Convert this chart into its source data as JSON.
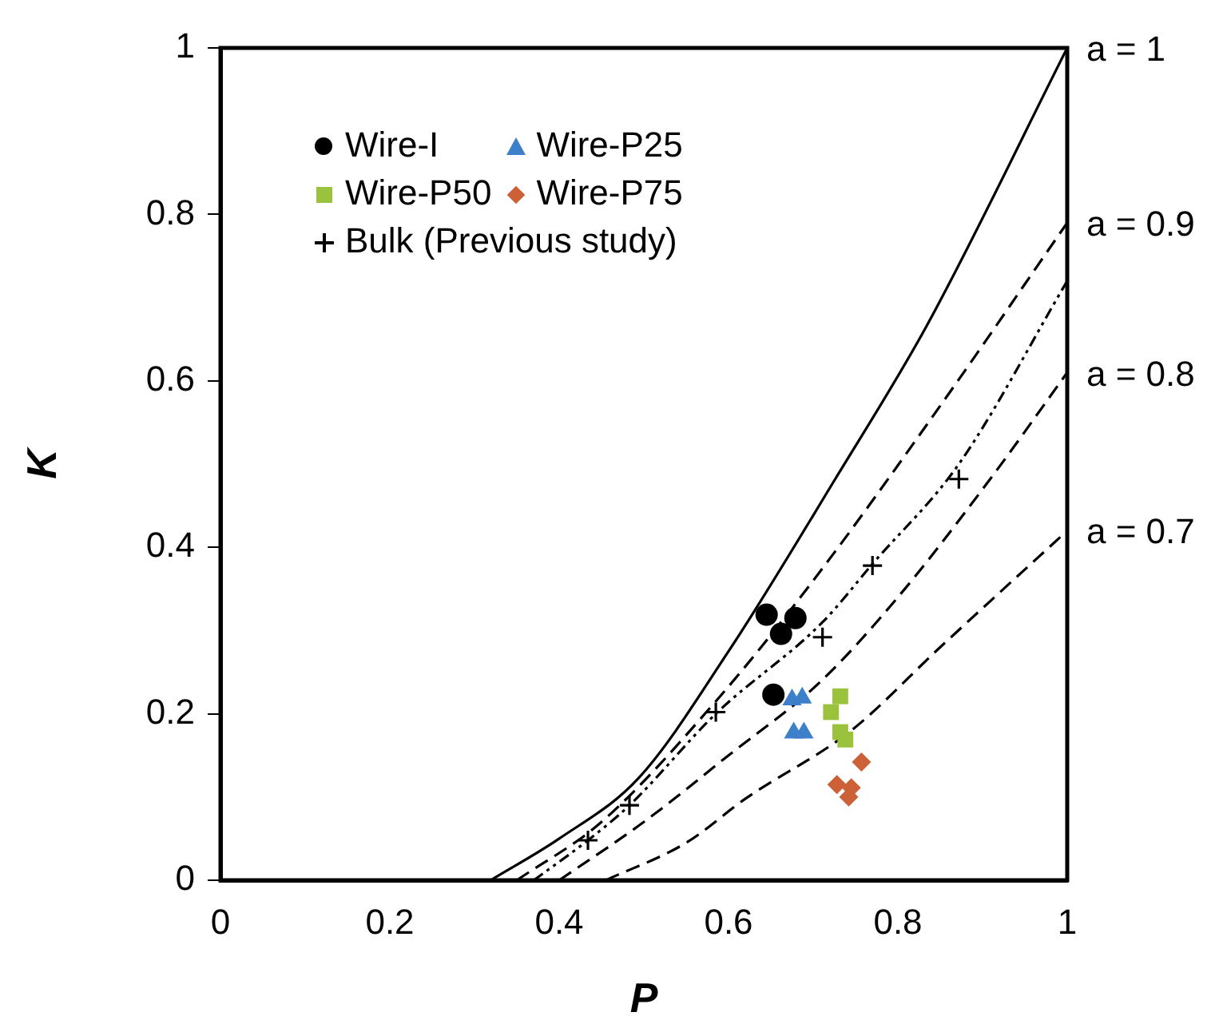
{
  "chart_data": {
    "type": "scatter",
    "xlabel": "P",
    "ylabel": "K",
    "xlim": [
      0,
      1
    ],
    "ylim": [
      0,
      1
    ],
    "xticks": [
      0,
      0.2,
      0.4,
      0.6,
      0.8,
      1
    ],
    "yticks": [
      0,
      0.2,
      0.4,
      0.6,
      0.8,
      1
    ],
    "grid": false,
    "legend": "top left",
    "series": [
      {
        "name": "Wire-I",
        "color": "#000000",
        "marker": "circle",
        "x": [
          0.645,
          0.679,
          0.662,
          0.653
        ],
        "values": [
          0.319,
          0.315,
          0.296,
          0.223
        ]
      },
      {
        "name": "Wire-P25",
        "color": "#3d7fc9",
        "marker": "triangle",
        "x": [
          0.675,
          0.687,
          0.677,
          0.689
        ],
        "values": [
          0.217,
          0.219,
          0.177,
          0.177
        ]
      },
      {
        "name": "Wire-P50",
        "color": "#9bc23c",
        "marker": "square",
        "x": [
          0.732,
          0.721,
          0.732,
          0.738
        ],
        "values": [
          0.221,
          0.202,
          0.178,
          0.169
        ]
      },
      {
        "name": "Wire-P75",
        "color": "#cc6138",
        "marker": "diamond",
        "x": [
          0.757,
          0.728,
          0.745,
          0.742
        ],
        "values": [
          0.142,
          0.115,
          0.111,
          0.1
        ]
      },
      {
        "name": "Bulk (Previous study)",
        "color": "#000000",
        "marker": "cross",
        "x": [
          0.434,
          0.483,
          0.585,
          0.711,
          0.77,
          0.872
        ],
        "values": [
          0.048,
          0.09,
          0.202,
          0.292,
          0.378,
          0.482
        ]
      },
      {
        "type": "line",
        "color": "#000000",
        "line_style": "solid",
        "marker": "none",
        "x": [
          0.319,
          0.4,
          0.494,
          0.6,
          0.726,
          0.834,
          1
        ],
        "values": [
          0,
          0.05,
          0.123,
          0.275,
          0.482,
          0.666,
          1
        ]
      },
      {
        "type": "line",
        "color": "#000000",
        "line_style": "dashed",
        "marker": "none",
        "x": [
          0.35,
          0.45,
          0.585,
          0.7,
          0.85,
          1
        ],
        "values": [
          0,
          0.07,
          0.215,
          0.36,
          0.57,
          0.79
        ]
      },
      {
        "type": "line",
        "color": "#000000",
        "line_style": "dashed",
        "marker": "none",
        "x": [
          0.4,
          0.5,
          0.6,
          0.708,
          0.8,
          0.909,
          1
        ],
        "values": [
          0,
          0.07,
          0.15,
          0.238,
          0.34,
          0.482,
          0.61
        ]
      },
      {
        "type": "line",
        "color": "#000000",
        "line_style": "dashed",
        "marker": "none",
        "x": [
          0.455,
          0.55,
          0.62,
          0.745,
          0.85,
          1
        ],
        "values": [
          0,
          0.045,
          0.098,
          0.18,
          0.28,
          0.42
        ]
      },
      {
        "type": "line",
        "color": "#000000",
        "line_style": "dotted",
        "marker": "none",
        "x": [
          0.37,
          0.434,
          0.483,
          0.585,
          0.711,
          0.77,
          0.872,
          1
        ],
        "values": [
          0,
          0.048,
          0.09,
          0.2,
          0.31,
          0.38,
          0.5,
          0.72
        ]
      }
    ],
    "annotations": [
      "a = 1",
      "a = 0.9",
      "a = 0.8",
      "a = 0.7"
    ]
  }
}
